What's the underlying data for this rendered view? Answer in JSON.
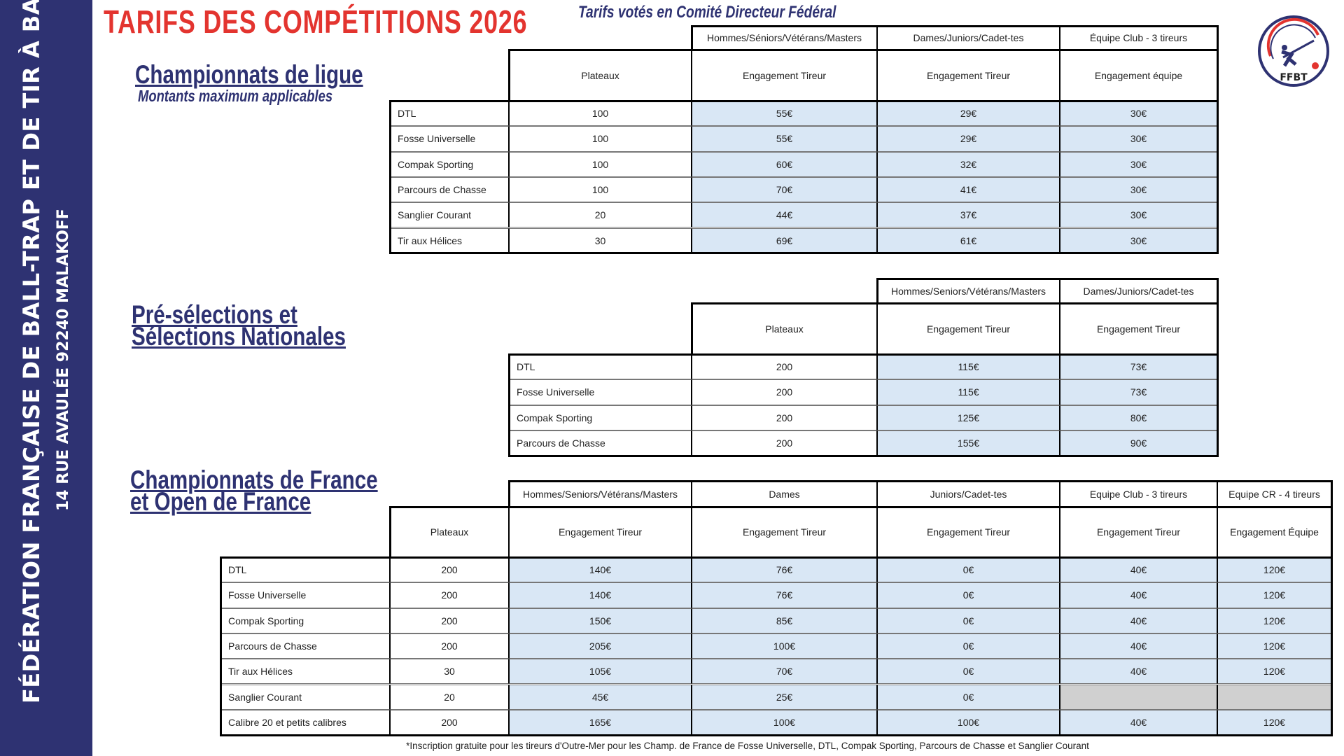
{
  "title": "TARIFS DES COMPÉTITIONS 2026",
  "subtitle": "Tarifs votés en Comité Directeur Fédéral",
  "sidebar": {
    "line1": "FÉDÉRATION FRANÇAISE DE BALL-TRAP ET DE TIR À BALLE",
    "line2": "14 RUE AVAULÉE 92240 MALAKOFF"
  },
  "logo": {
    "text": "FFBT",
    "colors": {
      "navy": "#2e3272",
      "red": "#e3342f"
    }
  },
  "colors": {
    "navy": "#2e3272",
    "title_red": "#e3342f",
    "value_cell": "#d9e7f5",
    "na_cell": "#d0d0d0"
  },
  "sections": [
    {
      "heading": [
        "Championnats de ligue"
      ],
      "subheading": "Montants maximum applicables",
      "table": {
        "groups": [
          "Hommes/Séniors/Vétérans/Masters",
          "Dames/Juniors/Cadet-tes",
          "Équipe Club - 3 tireurs"
        ],
        "columns": [
          "Plateaux",
          "Engagement Tireur",
          "Engagement Tireur",
          "Engagement équipe"
        ],
        "rows": [
          [
            "DTL",
            "100",
            "55€",
            "29€",
            "30€"
          ],
          [
            "Fosse Universelle",
            "100",
            "55€",
            "29€",
            "30€"
          ],
          [
            "Compak Sporting",
            "100",
            "60€",
            "32€",
            "30€"
          ],
          [
            "Parcours de Chasse",
            "100",
            "70€",
            "41€",
            "30€"
          ],
          [
            "Sanglier Courant",
            "20",
            "44€",
            "37€",
            "30€"
          ],
          [
            "Tir aux Hélices",
            "30",
            "69€",
            "61€",
            "30€"
          ]
        ]
      }
    },
    {
      "heading": [
        "Pré-sélections et",
        "Sélections Nationales"
      ],
      "table": {
        "groups": [
          "Hommes/Seniors/Vétérans/Masters",
          "Dames/Juniors/Cadet-tes"
        ],
        "columns": [
          "Plateaux",
          "Engagement Tireur",
          "Engagement Tireur"
        ],
        "rows": [
          [
            "DTL",
            "200",
            "115€",
            "73€"
          ],
          [
            "Fosse Universelle",
            "200",
            "115€",
            "73€"
          ],
          [
            "Compak Sporting",
            "200",
            "125€",
            "80€"
          ],
          [
            "Parcours de Chasse",
            "200",
            "155€",
            "90€"
          ]
        ]
      }
    },
    {
      "heading": [
        "Championnats de France",
        "et Open de France"
      ],
      "table": {
        "groups": [
          "Hommes/Seniors/Vétérans/Masters",
          "Dames",
          "Juniors/Cadet-tes",
          "Equipe Club - 3 tireurs",
          "Equipe CR - 4 tireurs"
        ],
        "columns": [
          "Plateaux",
          "Engagement Tireur",
          "Engagement Tireur",
          "Engagement Tireur",
          "Engagement Tireur",
          "Engagement Équipe"
        ],
        "rows": [
          [
            "DTL",
            "200",
            "140€",
            "76€",
            "0€",
            "40€",
            "120€"
          ],
          [
            "Fosse Universelle",
            "200",
            "140€",
            "76€",
            "0€",
            "40€",
            "120€"
          ],
          [
            "Compak Sporting",
            "200",
            "150€",
            "85€",
            "0€",
            "40€",
            "120€"
          ],
          [
            "Parcours de Chasse",
            "200",
            "205€",
            "100€",
            "0€",
            "40€",
            "120€"
          ],
          [
            "Tir aux Hélices",
            "30",
            "105€",
            "70€",
            "0€",
            "40€",
            "120€"
          ],
          [
            "Sanglier Courant",
            "20",
            "45€",
            "25€",
            "0€",
            null,
            null
          ],
          [
            "Calibre 20 et petits calibres",
            "200",
            "165€",
            "100€",
            "100€",
            "40€",
            "120€"
          ]
        ]
      }
    }
  ],
  "footnote": "*Inscription gratuite pour les tireurs d'Outre-Mer pour les Champ. de France de Fosse Universelle, DTL, Compak Sporting, Parcours de Chasse et Sanglier Courant"
}
